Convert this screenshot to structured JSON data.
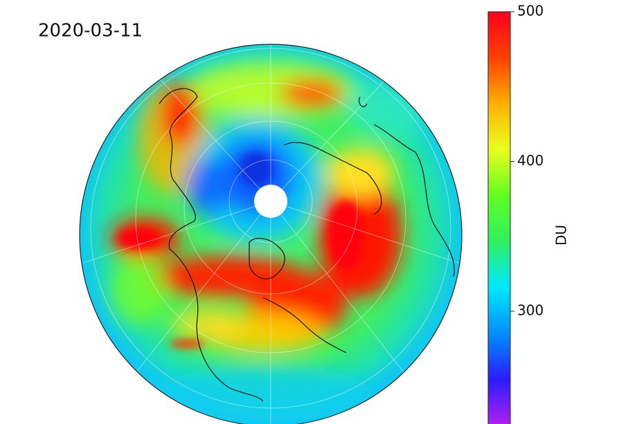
{
  "map": {
    "title": "2020-03-11",
    "colorbar": {
      "label": "DU",
      "lim": [
        224,
        500
      ],
      "ticks": [
        300,
        400,
        500
      ],
      "colormap": [
        "#b020f0",
        "#2a1cff",
        "#0090ff",
        "#00e8ff",
        "#30f060",
        "#60ff20",
        "#e8ff20",
        "#ffb000",
        "#ff4000",
        "#ff0020"
      ]
    }
  }
}
